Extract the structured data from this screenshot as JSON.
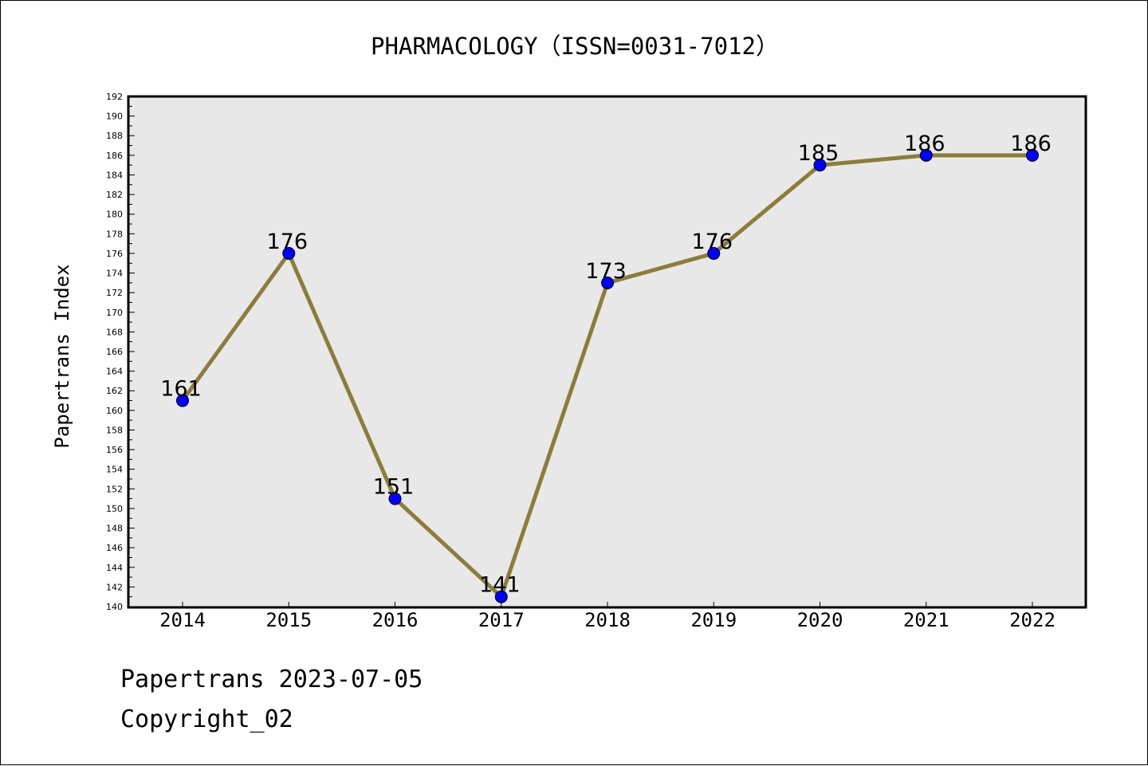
{
  "chart_data": {
    "type": "line",
    "title": "PHARMACOLOGY（ISSN=0031-7012）",
    "xlabel": "",
    "ylabel": "Papertrans Index",
    "x": [
      "2014",
      "2015",
      "2016",
      "2017",
      "2018",
      "2019",
      "2020",
      "2021",
      "2022"
    ],
    "series": [
      {
        "values": [
          161,
          176,
          151,
          141,
          173,
          176,
          185,
          186,
          186
        ]
      }
    ],
    "data_labels": [
      "161",
      "176",
      "151",
      "141",
      "173",
      "176",
      "185",
      "186",
      "186"
    ],
    "ylim": [
      140,
      192
    ],
    "ytick_step": 2,
    "grid": false,
    "legend": "none",
    "colors": {
      "line": "#8b7d3a",
      "marker": "#0000ff",
      "plot_background": "#e8e8e8",
      "axis": "#000000"
    }
  },
  "footer": {
    "source": "Papertrans 2023-07-05",
    "copyright": "Copyright_02"
  }
}
